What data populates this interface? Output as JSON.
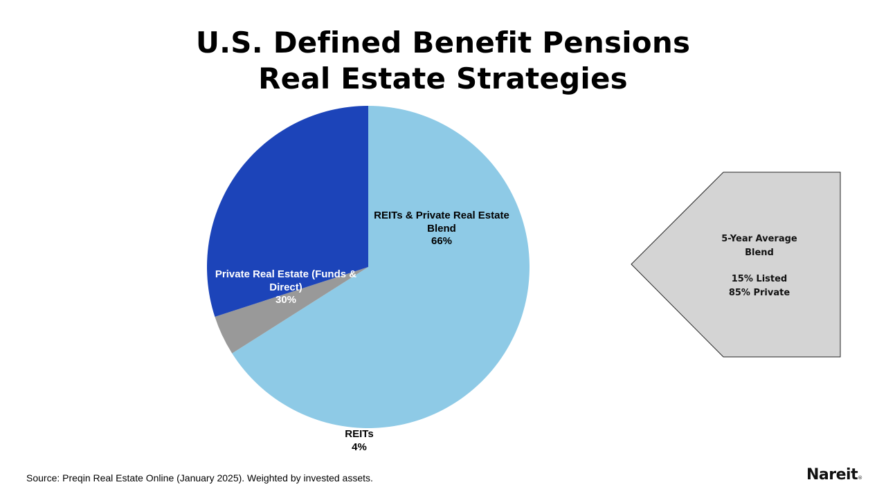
{
  "title": {
    "line1": "U.S. Defined Benefit Pensions",
    "line2": "Real Estate Strategies"
  },
  "chart_data": {
    "type": "pie",
    "title": "U.S. Defined Benefit Pensions Real Estate Strategies",
    "categories": [
      "REITs & Private Real Estate Blend",
      "REITs",
      "Private Real Estate (Funds & Direct)"
    ],
    "values": [
      66,
      4,
      30
    ],
    "colors": [
      "#8ecae6",
      "#999999",
      "#1c44b9"
    ],
    "labels": {
      "blend": {
        "line1": "REITs & Private Real Estate",
        "line2": "Blend",
        "pct": "66%"
      },
      "private": {
        "line1": "Private Real Estate (Funds &",
        "line2": "Direct)",
        "pct": "30%"
      },
      "reits": {
        "line1": "REITs",
        "pct": "4%"
      }
    }
  },
  "callout": {
    "line1": "5-Year Average",
    "line2": "Blend",
    "line3": "15% Listed",
    "line4": "85% Private",
    "fill": "#d4d4d4"
  },
  "source": "Source: Preqin Real Estate Online (January 2025). Weighted by invested assets.",
  "logo": {
    "text": "Nareit",
    "mark": "®"
  }
}
